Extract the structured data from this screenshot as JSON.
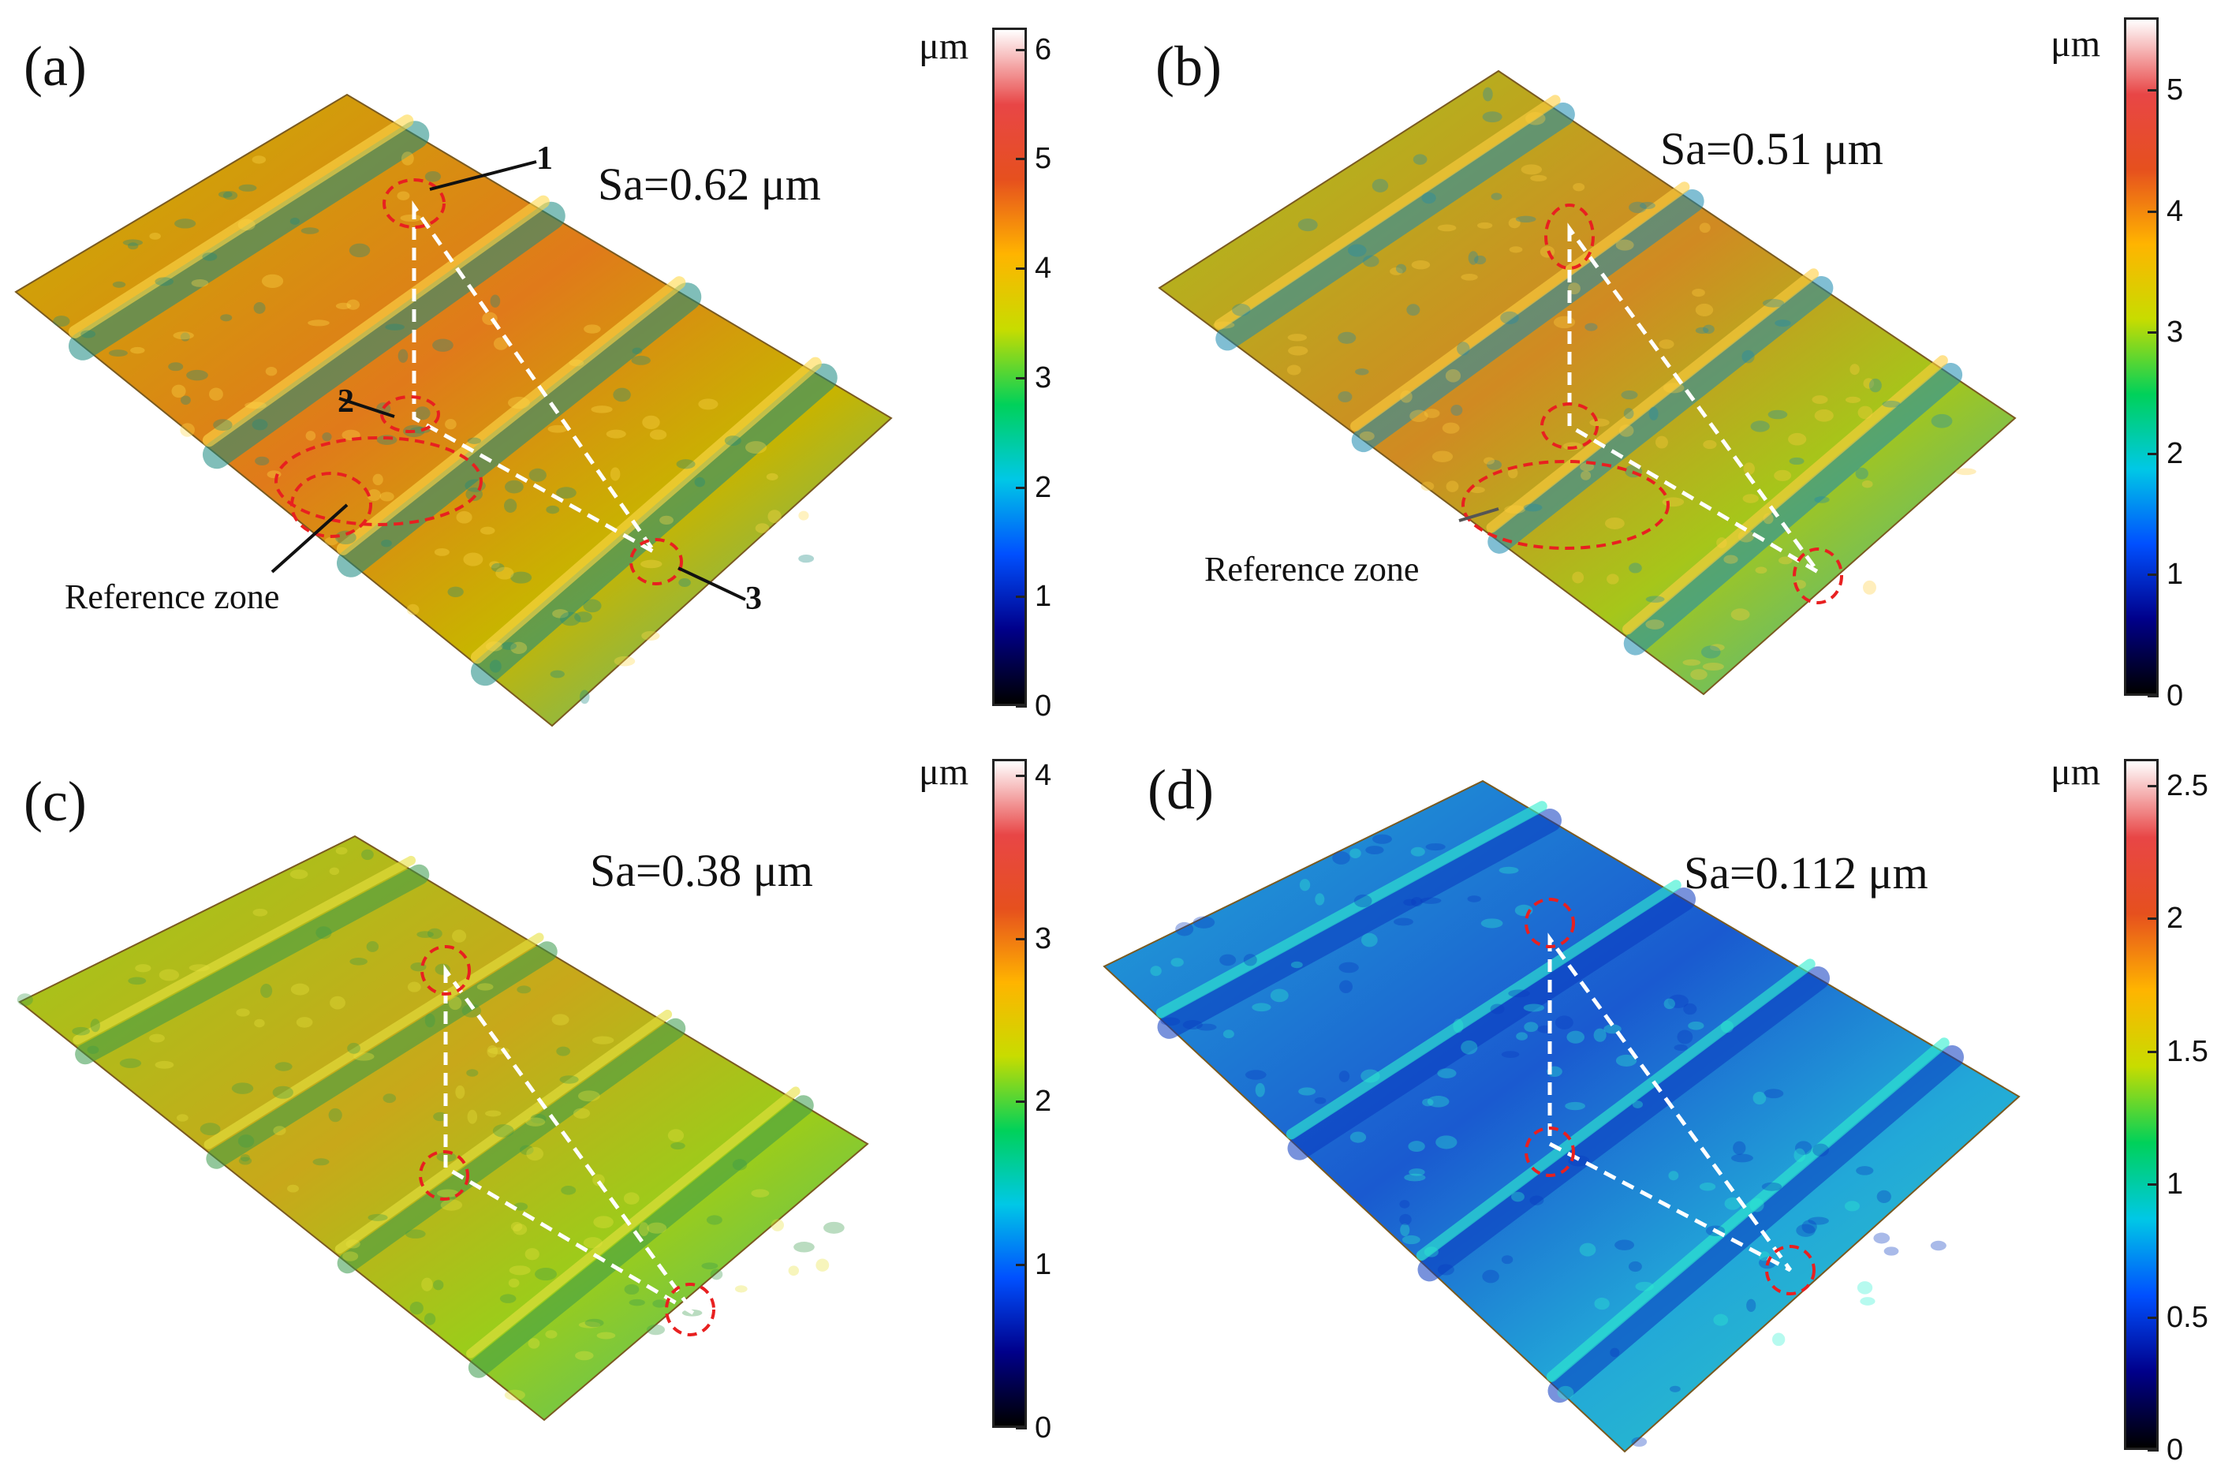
{
  "colormap": [
    "#000000",
    "#00008b",
    "#0050ff",
    "#00c8e6",
    "#00d15a",
    "#c8dc00",
    "#ffb400",
    "#e6501e",
    "#e84646",
    "#ffffff"
  ],
  "panels": [
    {
      "label": "(a)",
      "sa": "Sa=0.62 μm",
      "unit": "μm",
      "ticks": [
        "6",
        "5",
        "4",
        "3",
        "2",
        "1",
        "0"
      ],
      "max": 6.2,
      "tick_values": [
        6,
        5,
        4,
        3,
        2,
        1,
        0
      ],
      "reference_zone": "Reference zone",
      "points": [
        "1",
        "2",
        "3"
      ],
      "surface_tone": [
        "#c8b400",
        "#e07a1a",
        "#3fbfa0"
      ]
    },
    {
      "label": "(b)",
      "sa": "Sa=0.51 μm",
      "unit": "μm",
      "ticks": [
        "5",
        "4",
        "3",
        "2",
        "1",
        "0"
      ],
      "max": 5.6,
      "tick_values": [
        5,
        4,
        3,
        2,
        1,
        0
      ],
      "reference_zone": "Reference zone",
      "points": [],
      "surface_tone": [
        "#a6c61a",
        "#d08a22",
        "#2fb6b0"
      ]
    },
    {
      "label": "(c)",
      "sa": "Sa=0.38 μm",
      "unit": "μm",
      "ticks": [
        "4",
        "3",
        "2",
        "1",
        "0"
      ],
      "max": 4.1,
      "tick_values": [
        4,
        3,
        2,
        1,
        0
      ],
      "reference_zone": "",
      "points": [],
      "surface_tone": [
        "#9ccc1a",
        "#c8a81a",
        "#3ec080"
      ]
    },
    {
      "label": "(d)",
      "sa": "Sa=0.112 μm",
      "unit": "μm",
      "ticks": [
        "2.5",
        "2",
        "1.5",
        "1",
        "0.5",
        "0"
      ],
      "max": 2.6,
      "tick_values": [
        2.5,
        2,
        1.5,
        1,
        0.5,
        0
      ],
      "reference_zone": "",
      "points": [],
      "surface_tone": [
        "#22a8d8",
        "#1a5ad0",
        "#2fd0c0"
      ]
    }
  ]
}
